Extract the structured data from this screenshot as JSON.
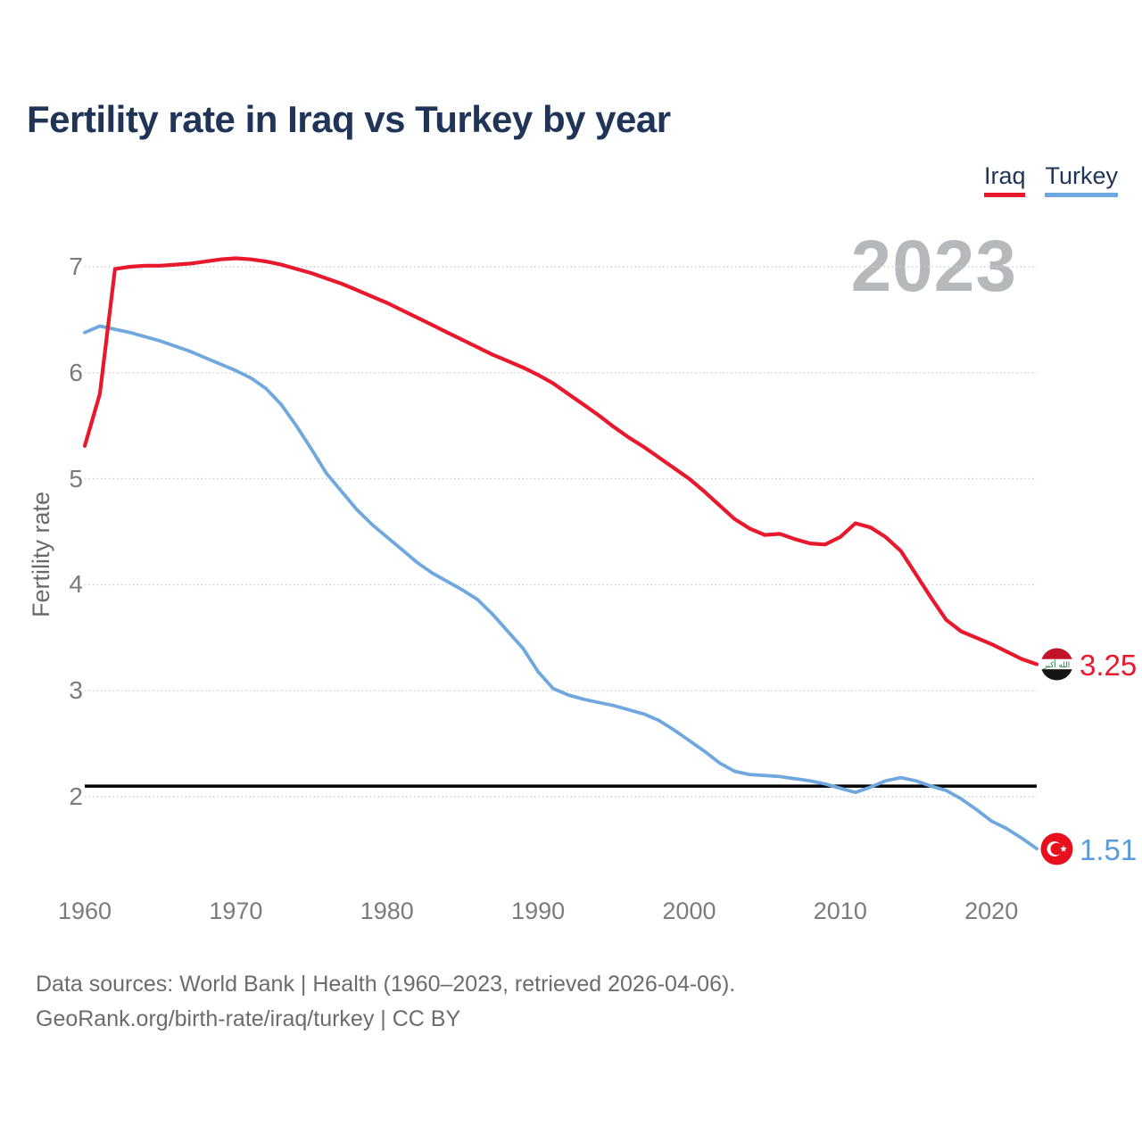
{
  "title": "Fertility rate in Iraq vs Turkey by year",
  "watermark": "2023",
  "y_axis_label": "Fertility rate",
  "legend": [
    {
      "label": "Iraq",
      "color": "#e8192c"
    },
    {
      "label": "Turkey",
      "color": "#6fa8de"
    }
  ],
  "end_labels": {
    "iraq": "3.25",
    "turkey": "1.51"
  },
  "footer": {
    "line1": "Data sources: World Bank | Health (1960–2023, retrieved 2026-04-06).",
    "line2": "GeoRank.org/birth-rate/iraq/turkey | CC BY"
  },
  "chart_data": {
    "type": "line",
    "title": "Fertility rate in Iraq vs Turkey by year",
    "xlabel": "",
    "ylabel": "Fertility rate",
    "xlim": [
      1960,
      2023
    ],
    "ylim": [
      1.3,
      7.3
    ],
    "x_ticks": [
      1960,
      1970,
      1980,
      1990,
      2000,
      2010,
      2020
    ],
    "y_ticks": [
      2,
      3,
      4,
      5,
      6,
      7
    ],
    "grid": "horizontal-dotted",
    "legend_position": "top-right",
    "reference_line": {
      "value": 2.1,
      "color": "#000000"
    },
    "x": [
      1960,
      1961,
      1962,
      1963,
      1964,
      1965,
      1966,
      1967,
      1968,
      1969,
      1970,
      1971,
      1972,
      1973,
      1974,
      1975,
      1976,
      1977,
      1978,
      1979,
      1980,
      1981,
      1982,
      1983,
      1984,
      1985,
      1986,
      1987,
      1988,
      1989,
      1990,
      1991,
      1992,
      1993,
      1994,
      1995,
      1996,
      1997,
      1998,
      1999,
      2000,
      2001,
      2002,
      2003,
      2004,
      2005,
      2006,
      2007,
      2008,
      2009,
      2010,
      2011,
      2012,
      2013,
      2014,
      2015,
      2016,
      2017,
      2018,
      2019,
      2020,
      2021,
      2022,
      2023
    ],
    "series": [
      {
        "name": "Iraq",
        "color": "#e8192c",
        "end_label": "3.25",
        "values": [
          5.31,
          5.8,
          6.98,
          7.0,
          7.01,
          7.01,
          7.02,
          7.03,
          7.05,
          7.07,
          7.08,
          7.07,
          7.05,
          7.02,
          6.98,
          6.94,
          6.89,
          6.84,
          6.78,
          6.72,
          6.66,
          6.59,
          6.52,
          6.45,
          6.38,
          6.31,
          6.24,
          6.17,
          6.11,
          6.05,
          5.98,
          5.9,
          5.8,
          5.7,
          5.6,
          5.49,
          5.39,
          5.3,
          5.2,
          5.1,
          5.0,
          4.88,
          4.75,
          4.62,
          4.53,
          4.47,
          4.48,
          4.43,
          4.39,
          4.38,
          4.45,
          4.58,
          4.54,
          4.45,
          4.32,
          4.1,
          3.88,
          3.67,
          3.56,
          3.5,
          3.44,
          3.37,
          3.3,
          3.25
        ]
      },
      {
        "name": "Turkey",
        "color": "#6fa8de",
        "end_label": "1.51",
        "values": [
          6.38,
          6.44,
          6.41,
          6.38,
          6.34,
          6.3,
          6.25,
          6.2,
          6.14,
          6.08,
          6.02,
          5.95,
          5.85,
          5.7,
          5.5,
          5.28,
          5.05,
          4.88,
          4.71,
          4.57,
          4.45,
          4.33,
          4.21,
          4.11,
          4.03,
          3.95,
          3.86,
          3.72,
          3.56,
          3.4,
          3.18,
          3.02,
          2.96,
          2.92,
          2.89,
          2.86,
          2.82,
          2.78,
          2.72,
          2.63,
          2.53,
          2.43,
          2.32,
          2.24,
          2.21,
          2.2,
          2.19,
          2.17,
          2.15,
          2.12,
          2.08,
          2.04,
          2.09,
          2.15,
          2.18,
          2.15,
          2.1,
          2.06,
          1.98,
          1.88,
          1.77,
          1.7,
          1.61,
          1.51
        ]
      }
    ]
  }
}
